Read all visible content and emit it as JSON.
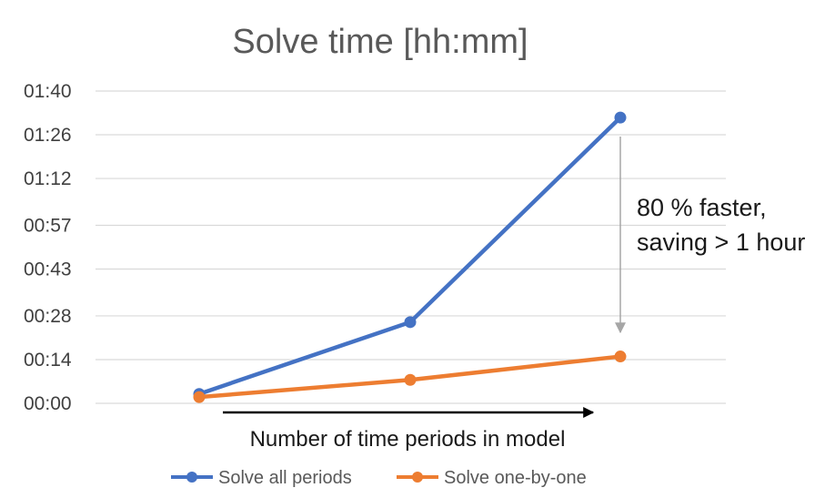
{
  "chart_data": {
    "type": "line",
    "title": "Solve time [hh:mm]",
    "xlabel": "Number of time periods in model",
    "ylabel": "",
    "ylim": [
      0,
      100
    ],
    "ytick_values": [
      0,
      14,
      28,
      43,
      57,
      72,
      86,
      100
    ],
    "ytick_labels": [
      "00:00",
      "00:14",
      "00:28",
      "00:43",
      "00:57",
      "01:12",
      "01:26",
      "01:40"
    ],
    "grid": true,
    "legend": "bottom",
    "series": [
      {
        "name": "Solve all periods",
        "color": "#4472C4",
        "values": [
          3,
          26,
          91.5
        ]
      },
      {
        "name": "Solve one-by-one",
        "color": "#ED7D31",
        "values": [
          2,
          7.5,
          15
        ]
      }
    ],
    "annotations": {
      "line1": "80 % faster,",
      "line2": "saving > 1 hour"
    }
  }
}
